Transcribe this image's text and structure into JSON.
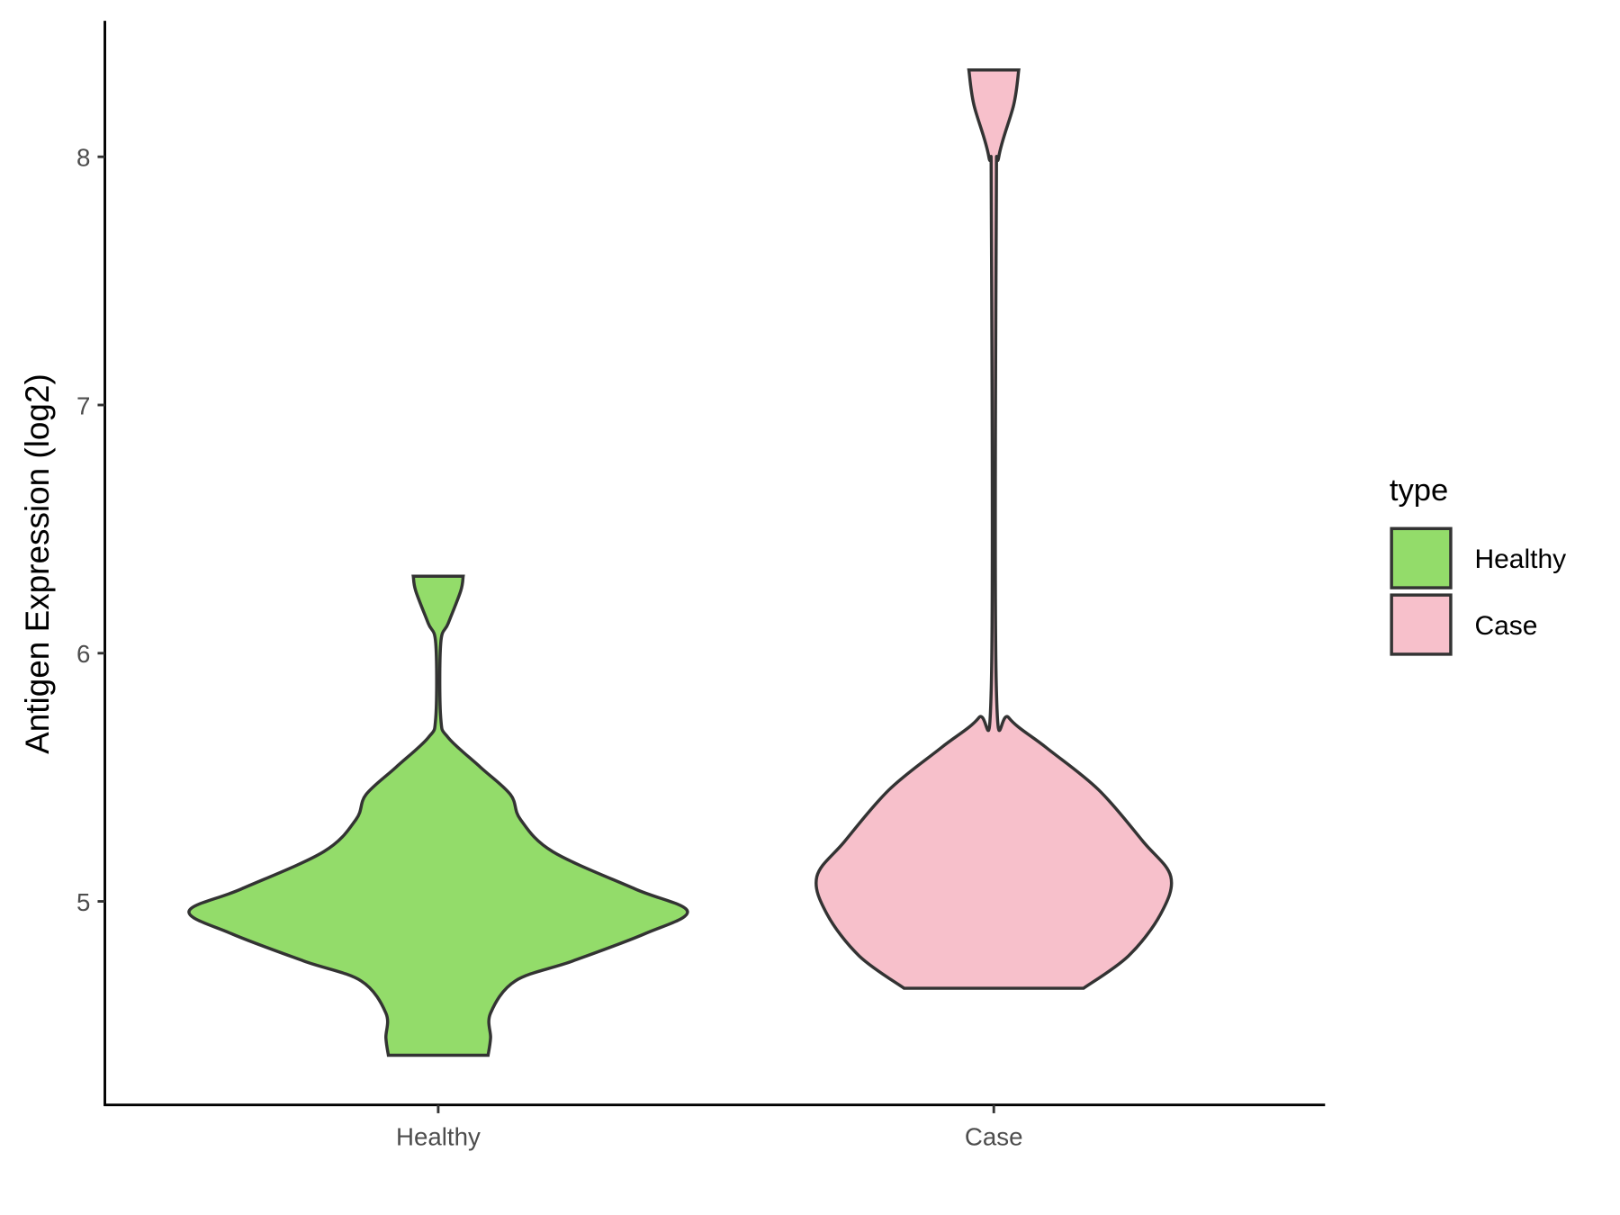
{
  "chart_data": {
    "type": "violin",
    "title": "",
    "xlabel": "",
    "ylabel": "Antigen Expression (log2)",
    "categories": [
      "Healthy",
      "Case"
    ],
    "y_ticks": [
      5,
      6,
      7,
      8
    ],
    "grid": false,
    "legend": {
      "title": "type",
      "placement": "right",
      "entries": [
        "Healthy",
        "Case"
      ]
    },
    "series": [
      {
        "name": "Healthy",
        "color": "#93dc6a",
        "min": 4.38,
        "max": 6.31,
        "density_profile": [
          [
            4.38,
            0.2
          ],
          [
            4.45,
            0.21
          ],
          [
            4.55,
            0.21
          ],
          [
            4.68,
            0.31
          ],
          [
            4.76,
            0.54
          ],
          [
            4.87,
            0.83
          ],
          [
            4.96,
            1.0
          ],
          [
            5.05,
            0.79
          ],
          [
            5.2,
            0.46
          ],
          [
            5.33,
            0.33
          ],
          [
            5.43,
            0.29
          ],
          [
            5.54,
            0.17
          ],
          [
            5.66,
            0.04
          ],
          [
            5.74,
            0.01
          ],
          [
            6.04,
            0.01
          ],
          [
            6.12,
            0.04
          ],
          [
            6.25,
            0.09
          ],
          [
            6.31,
            0.1
          ]
        ]
      },
      {
        "name": "Case",
        "color": "#f7c0cb",
        "min": 4.65,
        "max": 8.35,
        "density_profile": [
          [
            4.65,
            0.36
          ],
          [
            4.78,
            0.54
          ],
          [
            4.95,
            0.67
          ],
          [
            5.1,
            0.71
          ],
          [
            5.24,
            0.6
          ],
          [
            5.45,
            0.42
          ],
          [
            5.62,
            0.21
          ],
          [
            5.74,
            0.06
          ],
          [
            5.87,
            0.01
          ],
          [
            7.79,
            0.01
          ],
          [
            8.0,
            0.02
          ],
          [
            8.21,
            0.08
          ],
          [
            8.35,
            0.1
          ]
        ]
      }
    ]
  }
}
